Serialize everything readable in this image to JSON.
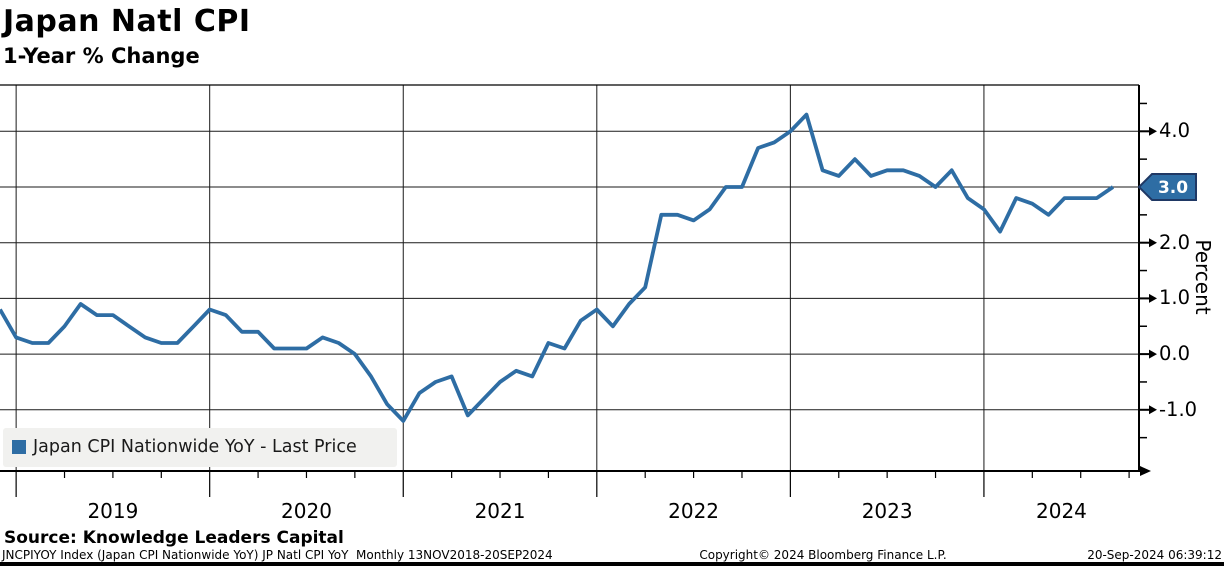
{
  "header": {
    "title": "Japan Natl CPI",
    "subtitle": "1-Year % Change"
  },
  "chart_data": {
    "type": "line",
    "title": "Japan Natl CPI",
    "subtitle": "1-Year % Change",
    "ylabel": "Percent",
    "xlabel": "",
    "frequency": "Monthly",
    "date_range": "13NOV2018-20SEP2024",
    "start_month": "2018-11",
    "end_month": "2024-08",
    "grid": true,
    "legend_position": "bottom-left",
    "ylim": [
      -2.1,
      4.8
    ],
    "y_major_tick_step": 1.0,
    "y_minor_tick_step": 0.5,
    "series": [
      {
        "name": "Japan CPI Nationwide YoY - Last Price",
        "color": "#2e6da4",
        "last_price": 3.0,
        "values": [
          0.8,
          0.3,
          0.2,
          0.2,
          0.5,
          0.9,
          0.7,
          0.7,
          0.5,
          0.3,
          0.2,
          0.2,
          0.5,
          0.8,
          0.7,
          0.4,
          0.4,
          0.1,
          0.1,
          0.1,
          0.3,
          0.2,
          0.0,
          -0.4,
          -0.9,
          -1.2,
          -0.7,
          -0.5,
          -0.4,
          -1.1,
          -0.8,
          -0.5,
          -0.3,
          -0.4,
          0.2,
          0.1,
          0.6,
          0.8,
          0.5,
          0.9,
          1.2,
          2.5,
          2.5,
          2.4,
          2.6,
          3.0,
          3.0,
          3.7,
          3.8,
          4.0,
          4.3,
          3.3,
          3.2,
          3.5,
          3.2,
          3.3,
          3.3,
          3.2,
          3.0,
          3.3,
          2.8,
          2.6,
          2.2,
          2.8,
          2.7,
          2.5,
          2.8,
          2.8,
          2.8,
          3.0
        ]
      }
    ],
    "y_tick_labels": [
      {
        "value": 4.0,
        "label": "4.0"
      },
      {
        "value": 2.0,
        "label": "2.0"
      },
      {
        "value": 1.0,
        "label": "1.0"
      },
      {
        "value": 0.0,
        "label": "0.0"
      },
      {
        "value": -1.0,
        "label": "-1.0"
      }
    ],
    "x_year_labels": [
      "2019",
      "2020",
      "2021",
      "2022",
      "2023",
      "2024"
    ]
  },
  "badge": {
    "value": "3.0",
    "fill": "#2e6da4",
    "border": "#1f3864",
    "text_color": "#ffffff"
  },
  "axis": {
    "percent_label": "Percent"
  },
  "legend": {
    "label": "Japan CPI Nationwide YoY - Last Price",
    "swatch_color": "#2e6da4",
    "background": "#f1f1ef"
  },
  "footer": {
    "source": "Source: Knowledge Leaders Capital",
    "ticker_line": "JNCPIYOY Index (Japan CPI Nationwide YoY) JP Natl CPI YoY  Monthly 13NOV2018-20SEP2024",
    "copyright": "Copyright© 2024 Bloomberg Finance L.P.",
    "timestamp": "20-Sep-2024 06:39:12"
  }
}
